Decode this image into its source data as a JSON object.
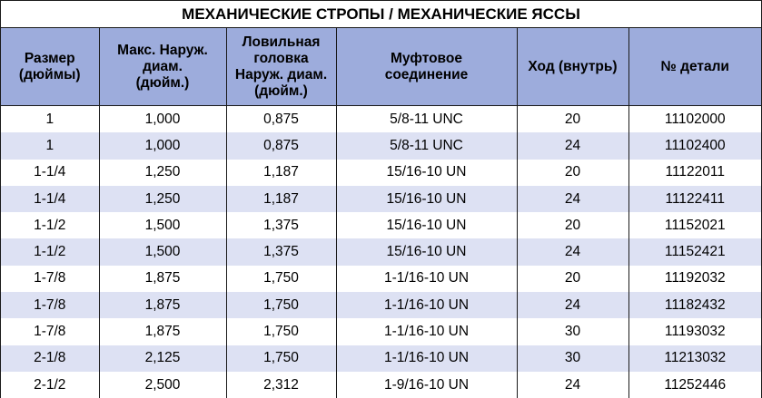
{
  "title": "МЕХАНИЧЕСКИЕ СТРОПЫ / МЕХАНИЧЕСКИЕ ЯССЫ",
  "headers": [
    [
      "Размер",
      "(дюймы)"
    ],
    [
      "Макс. Наруж.",
      "диам.",
      "(дюйм.)"
    ],
    [
      "Ловильная",
      "головка",
      "Наруж. диам.",
      "(дюйм.)"
    ],
    [
      "Муфтовое",
      "соединение"
    ],
    [
      "Ход (внутрь)"
    ],
    [
      "№ детали"
    ]
  ],
  "rows": [
    [
      "1",
      "1,000",
      "0,875",
      "5/8-11 UNC",
      "20",
      "11102000"
    ],
    [
      "1",
      "1,000",
      "0,875",
      "5/8-11 UNC",
      "24",
      "11102400"
    ],
    [
      "1-1/4",
      "1,250",
      "1,187",
      "15/16-10 UN",
      "20",
      "11122011"
    ],
    [
      "1-1/4",
      "1,250",
      "1,187",
      "15/16-10 UN",
      "24",
      "11122411"
    ],
    [
      "1-1/2",
      "1,500",
      "1,375",
      "15/16-10 UN",
      "20",
      "11152021"
    ],
    [
      "1-1/2",
      "1,500",
      "1,375",
      "15/16-10 UN",
      "24",
      "11152421"
    ],
    [
      "1-7/8",
      "1,875",
      "1,750",
      "1-1/16-10 UN",
      "20",
      "11192032"
    ],
    [
      "1-7/8",
      "1,875",
      "1,750",
      "1-1/16-10 UN",
      "24",
      "11182432"
    ],
    [
      "1-7/8",
      "1,875",
      "1,750",
      "1-1/16-10 UN",
      "30",
      "11193032"
    ],
    [
      "2-1/8",
      "2,125",
      "1,750",
      "1-1/16-10 UN",
      "30",
      "11213032"
    ],
    [
      "2-1/2",
      "2,500",
      "2,312",
      "1-9/16-10 UN",
      "24",
      "11252446"
    ]
  ],
  "colors": {
    "header_bg": "#9dacdc",
    "stripe_bg": "#dde1f3",
    "border": "#1a1a1a"
  }
}
